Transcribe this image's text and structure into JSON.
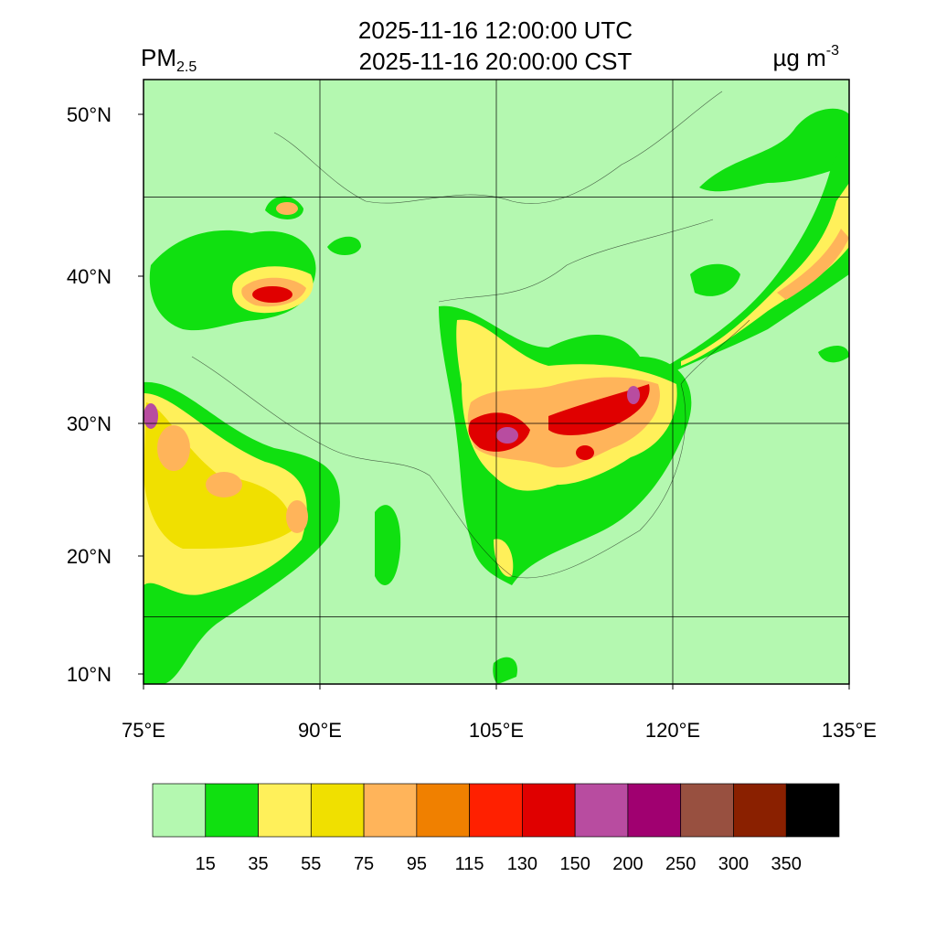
{
  "header": {
    "title_lines": [
      "2025-11-16 12:00:00 UTC",
      "2025-11-16 20:00:00 CST"
    ],
    "variable": {
      "main": "PM",
      "sub": "2.5"
    },
    "unit": {
      "main": "µg m",
      "sup": "-3"
    }
  },
  "map": {
    "lon_ticks": [
      {
        "value": 75,
        "label": "75°E"
      },
      {
        "value": 90,
        "label": "90°E"
      },
      {
        "value": 105,
        "label": "105°E"
      },
      {
        "value": 120,
        "label": "120°E"
      },
      {
        "value": 135,
        "label": "135°E"
      }
    ],
    "lat_ticks": [
      {
        "value": 10,
        "label": "10°N"
      },
      {
        "value": 20,
        "label": "20°N"
      },
      {
        "value": 30,
        "label": "30°N"
      },
      {
        "value": 40,
        "label": "40°N"
      },
      {
        "value": 50,
        "label": "50°N"
      }
    ],
    "grid_lon": [
      90,
      105,
      120
    ],
    "grid_lat": [
      15,
      30,
      45
    ]
  },
  "colorbar": {
    "levels": [
      15,
      35,
      55,
      75,
      95,
      115,
      130,
      150,
      200,
      250,
      300,
      350
    ],
    "colors": [
      "#b4f8b0",
      "#10e010",
      "#fff05a",
      "#f0e000",
      "#ffb45a",
      "#f08000",
      "#ff2000",
      "#e00000",
      "#b84ca0",
      "#a00070",
      "#985040",
      "#8a2000",
      "#000000"
    ]
  }
}
